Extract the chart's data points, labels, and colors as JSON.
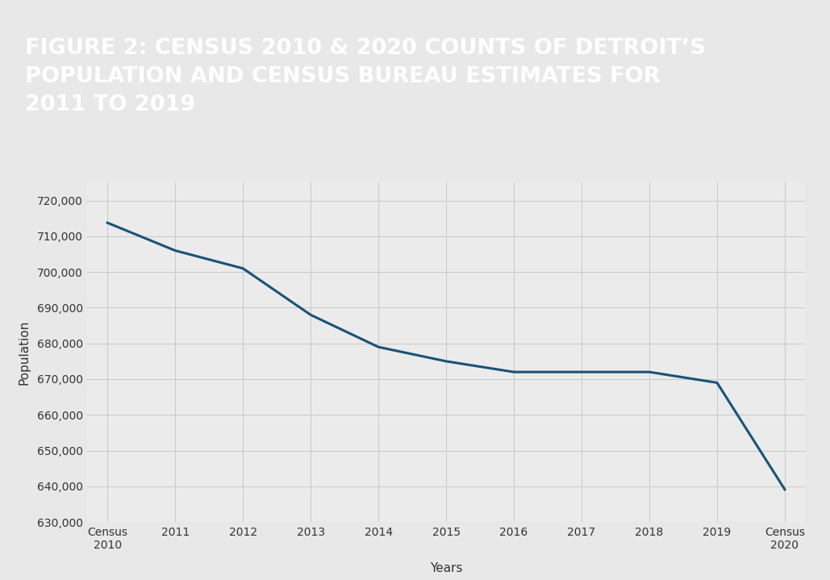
{
  "x_labels": [
    "Census\n2010",
    "2011",
    "2012",
    "2013",
    "2014",
    "2015",
    "2016",
    "2017",
    "2018",
    "2019",
    "Census\n2020"
  ],
  "x_positions": [
    0,
    1,
    2,
    3,
    4,
    5,
    6,
    7,
    8,
    9,
    10
  ],
  "y_values": [
    713777,
    706000,
    701000,
    688000,
    679000,
    675000,
    672000,
    672000,
    672000,
    669000,
    639111
  ],
  "line_color": "#1a5276",
  "line_width": 2.2,
  "ylabel": "Population",
  "xlabel": "Years",
  "ylim_min": 630000,
  "ylim_max": 725000,
  "ytick_step": 10000,
  "background_color": "#e8e8e8",
  "plot_bg_color": "#ebebeb",
  "header_bg_color": "#0d2856",
  "header_text_color": "#ffffff",
  "title_line1": "FIGURE 2: CENSUS 2010 & 2020 COUNTS OF DETROIT’S",
  "title_line2": "POPULATION AND CENSUS BUREAU ESTIMATES FOR",
  "title_line3": "2011 TO 2019",
  "grid_color": "#c8c8c8",
  "tick_color": "#333333",
  "axis_label_color": "#333333",
  "tick_fontsize": 10,
  "label_fontsize": 11,
  "header_fontsize": 19.5
}
